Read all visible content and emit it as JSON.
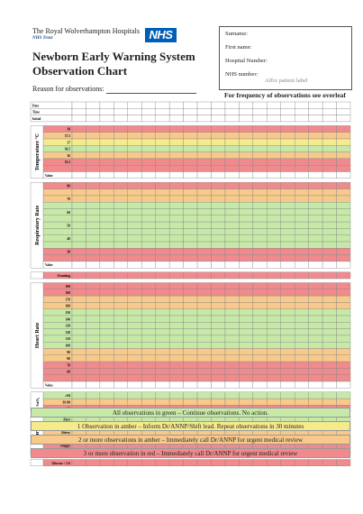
{
  "header": {
    "trust_name": "The Royal Wolverhampton Hospitals",
    "trust_sub": "NHS Trust",
    "logo_text": "NHS",
    "title_line1": "Newborn Early Warning System",
    "title_line2": "Observation Chart",
    "reason_label": "Reason for observations:"
  },
  "patient": {
    "surname": "Surname:",
    "first_name": "First name:",
    "hospital_number": "Hospital Number:",
    "nhs_number": "NHS number:",
    "affix": "Affix patient label"
  },
  "frequency_note": "For frequency of observations see overleaf",
  "colors": {
    "green": "#c6e9a8",
    "amber": "#f7c98a",
    "yellow": "#f5ea8c",
    "red": "#f08a8c",
    "grey": "#e8e8e8",
    "white": "#ffffff"
  },
  "header_rows": [
    "Date",
    "Time",
    "Initial"
  ],
  "sections": [
    {
      "name": "Temperature °C",
      "rows": [
        {
          "label": "38",
          "color": "red"
        },
        {
          "label": "37.5",
          "color": "amber"
        },
        {
          "label": "37",
          "color": "yellow"
        },
        {
          "label": "36.5",
          "color": "green"
        },
        {
          "label": "36",
          "color": "amber"
        },
        {
          "label": "35.5",
          "color": "red"
        },
        {
          "label": "",
          "color": "red"
        },
        {
          "label": "Value",
          "color": "white"
        }
      ]
    },
    {
      "name": "Respiratory Rate",
      "rows": [
        {
          "label": "80",
          "color": "red"
        },
        {
          "label": "",
          "color": "amber"
        },
        {
          "label": "70",
          "color": "amber"
        },
        {
          "label": "",
          "color": "green"
        },
        {
          "label": "60",
          "color": "green"
        },
        {
          "label": "",
          "color": "green"
        },
        {
          "label": "50",
          "color": "green"
        },
        {
          "label": "",
          "color": "green"
        },
        {
          "label": "40",
          "color": "green"
        },
        {
          "label": "",
          "color": "green"
        },
        {
          "label": "30",
          "color": "red"
        },
        {
          "label": "",
          "color": "red"
        },
        {
          "label": "Value",
          "color": "white"
        }
      ]
    },
    {
      "name": "",
      "rows": [
        {
          "label": "Grunting",
          "color": "red"
        }
      ]
    },
    {
      "name": "Heart Rate",
      "rows": [
        {
          "label": "190",
          "color": "red"
        },
        {
          "label": "180",
          "color": "red"
        },
        {
          "label": "170",
          "color": "amber"
        },
        {
          "label": "160",
          "color": "amber"
        },
        {
          "label": "150",
          "color": "green"
        },
        {
          "label": "140",
          "color": "green"
        },
        {
          "label": "130",
          "color": "green"
        },
        {
          "label": "120",
          "color": "green"
        },
        {
          "label": "110",
          "color": "green"
        },
        {
          "label": "100",
          "color": "green"
        },
        {
          "label": "90",
          "color": "amber"
        },
        {
          "label": "80",
          "color": "amber"
        },
        {
          "label": "70",
          "color": "red"
        },
        {
          "label": "60",
          "color": "red"
        },
        {
          "label": "",
          "color": "red"
        },
        {
          "label": "Value",
          "color": "white"
        }
      ]
    },
    {
      "name": "SaO₂",
      "rows": [
        {
          "label": "≥94",
          "color": "green"
        },
        {
          "label": "93-90",
          "color": "amber"
        },
        {
          "label": "<90",
          "color": "red"
        }
      ]
    },
    {
      "name": "Neuro",
      "rows": [
        {
          "label": "Alert",
          "color": "green"
        },
        {
          "label": "Irritable",
          "color": "amber"
        },
        {
          "label": "Jittery",
          "color": "amber"
        },
        {
          "label": "Poor feed",
          "color": "amber"
        },
        {
          "label": "Floppy",
          "color": "red"
        },
        {
          "label": "Seizures",
          "color": "red"
        }
      ]
    },
    {
      "name": "",
      "rows": [
        {
          "label": "Glucose < 2.6",
          "color": "red"
        }
      ]
    }
  ],
  "legend": [
    {
      "text": "All observations in green – Continue observations. No action.",
      "color": "green"
    },
    {
      "text": "1 Observation in amber – Inform Dr/ANNP/Shift lead. Repeat observations in 30 minutes",
      "color": "yellow"
    },
    {
      "text": "2 or more observations in amber – Immediately call Dr/ANNP for urgent medical review",
      "color": "amber"
    },
    {
      "text": "3 or more observation in red – Immediately call Dr/ANNP for urgent medical review",
      "color": "red"
    }
  ]
}
